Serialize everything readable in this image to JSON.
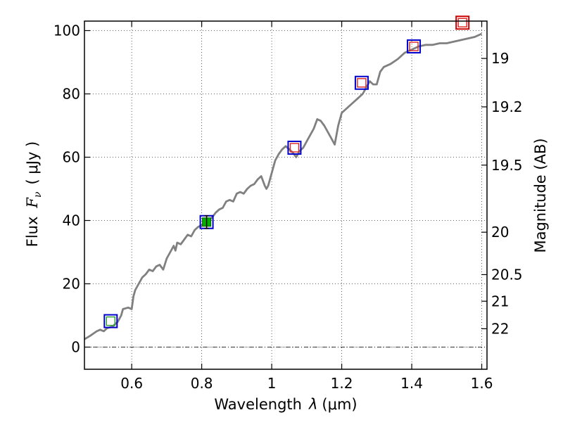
{
  "chart_data": {
    "type": "line",
    "xlabel_text": "Wavelength",
    "xlabel_symbol": "λ",
    "xlabel_unit": "(μm)",
    "ylabel_text": "Flux",
    "ylabel_symbol": "F",
    "ylabel_sub": "ν",
    "ylabel_unit": "( μJy )",
    "y2label": "Magnitude (AB)",
    "xlim": [
      0.465,
      1.615
    ],
    "ylim": [
      -7,
      103
    ],
    "xticks": [
      0.6,
      0.8,
      1.0,
      1.2,
      1.4,
      1.6
    ],
    "xtick_labels": [
      "0.6",
      "0.8",
      "1",
      "1.2",
      "1.4",
      "1.6"
    ],
    "yticks": [
      0,
      20,
      40,
      60,
      80,
      100
    ],
    "ytick_labels": [
      "0",
      "20",
      "40",
      "60",
      "80",
      "100"
    ],
    "y2ticks": [
      {
        "label": "19",
        "flux": 91.2
      },
      {
        "label": "19.2",
        "flux": 75.9
      },
      {
        "label": "19.5",
        "flux": 57.5
      },
      {
        "label": "20",
        "flux": 36.3
      },
      {
        "label": "20.5",
        "flux": 22.9
      },
      {
        "label": "21",
        "flux": 14.5
      },
      {
        "label": "22",
        "flux": 5.8
      }
    ],
    "grid": true,
    "zero_line": true,
    "spectrum": {
      "color": "#808080",
      "x": [
        0.465,
        0.48,
        0.5,
        0.51,
        0.52,
        0.53,
        0.545,
        0.56,
        0.57,
        0.575,
        0.59,
        0.6,
        0.605,
        0.61,
        0.62,
        0.63,
        0.64,
        0.65,
        0.66,
        0.67,
        0.68,
        0.69,
        0.7,
        0.71,
        0.72,
        0.725,
        0.73,
        0.74,
        0.75,
        0.76,
        0.77,
        0.78,
        0.79,
        0.8,
        0.81,
        0.82,
        0.83,
        0.84,
        0.85,
        0.86,
        0.87,
        0.88,
        0.89,
        0.9,
        0.91,
        0.92,
        0.93,
        0.94,
        0.95,
        0.96,
        0.97,
        0.98,
        0.985,
        0.99,
        1.0,
        1.01,
        1.02,
        1.03,
        1.04,
        1.05,
        1.06,
        1.07,
        1.08,
        1.09,
        1.1,
        1.12,
        1.13,
        1.14,
        1.15,
        1.16,
        1.17,
        1.18,
        1.19,
        1.2,
        1.22,
        1.24,
        1.26,
        1.27,
        1.28,
        1.29,
        1.3,
        1.31,
        1.32,
        1.34,
        1.36,
        1.38,
        1.4,
        1.42,
        1.44,
        1.46,
        1.48,
        1.5,
        1.52,
        1.54,
        1.56,
        1.58,
        1.6
      ],
      "y": [
        2.5,
        3.5,
        5.0,
        5.5,
        5.0,
        6.0,
        6.5,
        8.0,
        10.0,
        12.0,
        12.5,
        12.0,
        16.0,
        18.0,
        20.0,
        22.0,
        23.0,
        24.5,
        24.0,
        25.5,
        26.0,
        24.5,
        28.0,
        30.0,
        32.0,
        30.5,
        33.0,
        32.5,
        34.0,
        35.5,
        35.0,
        37.0,
        38.0,
        38.5,
        39.0,
        40.0,
        41.0,
        42.5,
        43.5,
        44.0,
        46.0,
        46.5,
        46.0,
        48.5,
        49.0,
        48.5,
        50.0,
        51.0,
        51.5,
        53.0,
        54.0,
        51.0,
        50.0,
        51.0,
        55.0,
        59.0,
        61.0,
        62.5,
        63.5,
        62.5,
        61.5,
        60.0,
        62.0,
        63.0,
        65.0,
        69.0,
        72.0,
        71.5,
        70.0,
        68.0,
        66.0,
        64.0,
        70.0,
        74.0,
        76.0,
        78.0,
        80.0,
        82.0,
        84.0,
        83.0,
        83.0,
        87.0,
        88.5,
        89.5,
        91.0,
        93.0,
        94.0,
        95.0,
        95.5,
        95.5,
        96.0,
        96.0,
        96.5,
        97.0,
        97.5,
        98.0,
        99.0
      ]
    },
    "photometry": [
      {
        "x": 0.54,
        "y": 8.2,
        "square_color": "#0000cc",
        "inner": "green-open",
        "err": 0
      },
      {
        "x": 0.814,
        "y": 39.5,
        "square_color": "#0000cc",
        "inner": "green-filled",
        "err": 2
      },
      {
        "x": 1.065,
        "y": 63.0,
        "square_color": "#0000cc",
        "inner": "red-open",
        "err": 0
      },
      {
        "x": 1.257,
        "y": 83.5,
        "square_color": "#0000cc",
        "inner": "red-open",
        "err": 0
      },
      {
        "x": 1.406,
        "y": 95.0,
        "square_color": "#0000cc",
        "inner": "red-open",
        "err": 0
      },
      {
        "x": 1.545,
        "y": 102.5,
        "square_color": "#cc0000",
        "inner": "red-open",
        "err": 0
      }
    ]
  }
}
